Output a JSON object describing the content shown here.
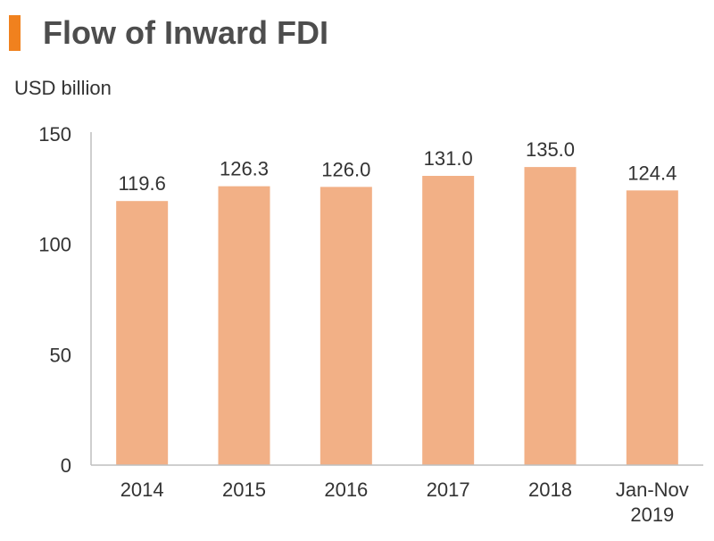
{
  "title": "Flow of Inward FDI",
  "unit_label": "USD billion",
  "colors": {
    "accent": "#f0811e",
    "bar": "#f2b086",
    "axis": "#bfbfbf",
    "text": "#333333"
  },
  "chart_data": {
    "type": "bar",
    "title": "Flow of Inward FDI",
    "ylabel": "USD billion",
    "categories": [
      [
        "2014"
      ],
      [
        "2015"
      ],
      [
        "2016"
      ],
      [
        "2017"
      ],
      [
        "2018"
      ],
      [
        "Jan-Nov",
        "2019"
      ]
    ],
    "values": [
      119.6,
      126.3,
      126.0,
      131.0,
      135.0,
      124.4
    ],
    "data_labels": [
      "119.6",
      "126.3",
      "126.0",
      "131.0",
      "135.0",
      "124.4"
    ],
    "yticks": [
      "0",
      "50",
      "100",
      "150"
    ],
    "ylim": [
      0,
      150
    ],
    "grid": false,
    "legend": "none"
  }
}
